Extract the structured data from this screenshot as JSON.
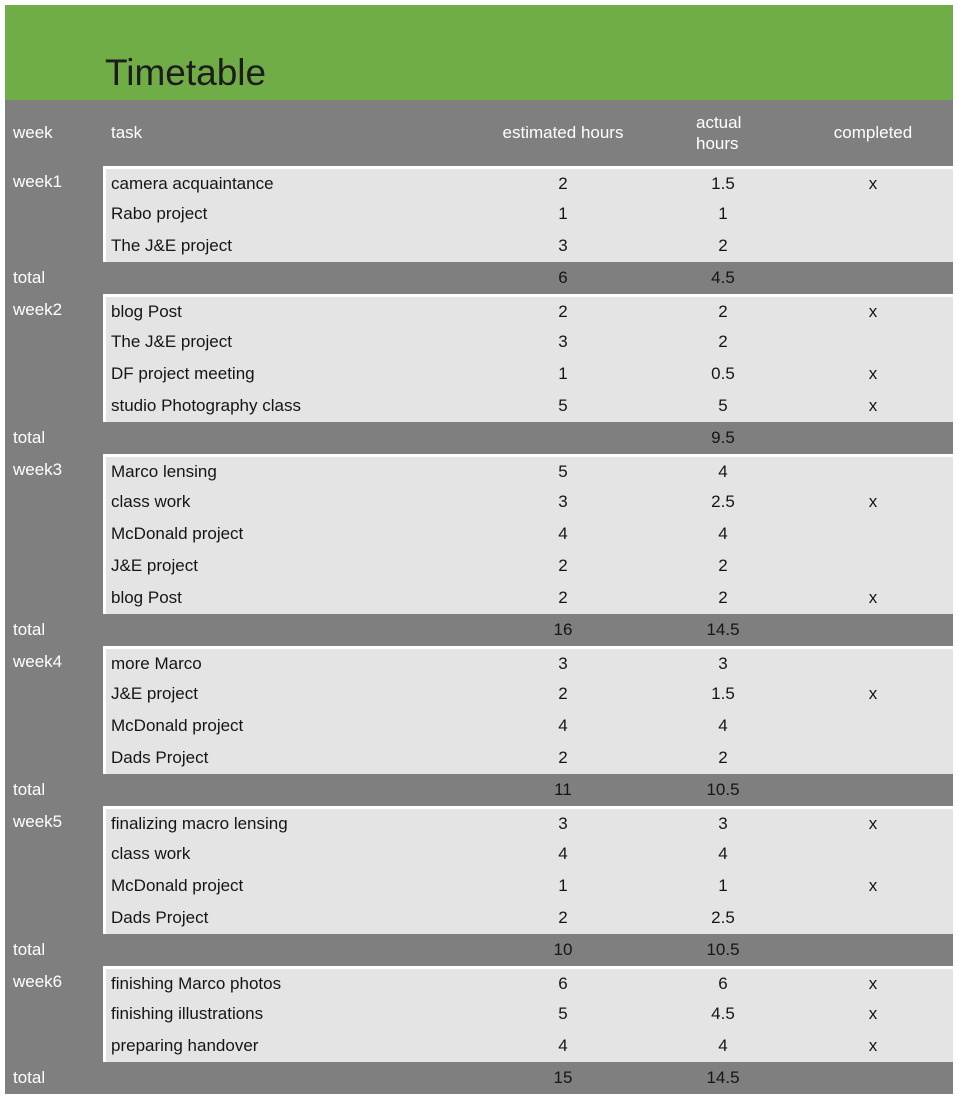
{
  "title": "Timetable",
  "columns": {
    "week": "week",
    "task": "task",
    "estimated": "estimated hours",
    "actual_line1": "actual",
    "actual_line2": "hours",
    "completed": "completed"
  },
  "weeks": [
    {
      "label": "week1",
      "tasks": [
        {
          "task": "camera acquaintance",
          "est": "2",
          "act": "1.5",
          "done": "x"
        },
        {
          "task": "Rabo project",
          "est": "1",
          "act": "1",
          "done": ""
        },
        {
          "task": "The J&E project",
          "est": "3",
          "act": "2",
          "done": ""
        }
      ],
      "total": {
        "label": "total",
        "est": "6",
        "act": "4.5"
      }
    },
    {
      "label": "week2",
      "tasks": [
        {
          "task": "blog Post",
          "est": "2",
          "act": "2",
          "done": "x"
        },
        {
          "task": "The J&E project",
          "est": "3",
          "act": "2",
          "done": ""
        },
        {
          "task": "DF project meeting",
          "est": "1",
          "act": "0.5",
          "done": "x"
        },
        {
          "task": "studio Photography class",
          "est": "5",
          "act": "5",
          "done": "x"
        }
      ],
      "total": {
        "label": "total",
        "est": "",
        "act": "9.5"
      }
    },
    {
      "label": "week3",
      "tasks": [
        {
          "task": "Marco lensing",
          "est": "5",
          "act": "4",
          "done": ""
        },
        {
          "task": "class work",
          "est": "3",
          "act": "2.5",
          "done": "x"
        },
        {
          "task": "McDonald project",
          "est": "4",
          "act": "4",
          "done": ""
        },
        {
          "task": "J&E project",
          "est": "2",
          "act": "2",
          "done": ""
        },
        {
          "task": "blog Post",
          "est": "2",
          "act": "2",
          "done": "x"
        }
      ],
      "total": {
        "label": "total",
        "est": "16",
        "act": "14.5"
      }
    },
    {
      "label": "week4",
      "tasks": [
        {
          "task": "more Marco",
          "est": "3",
          "act": "3",
          "done": ""
        },
        {
          "task": "J&E project",
          "est": "2",
          "act": "1.5",
          "done": "x"
        },
        {
          "task": "McDonald project",
          "est": "4",
          "act": "4",
          "done": ""
        },
        {
          "task": "Dads Project",
          "est": "2",
          "act": "2",
          "done": ""
        }
      ],
      "total": {
        "label": "total",
        "est": "11",
        "act": "10.5"
      }
    },
    {
      "label": "week5",
      "tasks": [
        {
          "task": "finalizing macro lensing",
          "est": "3",
          "act": "3",
          "done": "x"
        },
        {
          "task": "class work",
          "est": "4",
          "act": "4",
          "done": ""
        },
        {
          "task": "McDonald project",
          "est": "1",
          "act": "1",
          "done": "x"
        },
        {
          "task": "Dads Project",
          "est": "2",
          "act": "2.5",
          "done": ""
        }
      ],
      "total": {
        "label": "total",
        "est": "10",
        "act": "10.5"
      }
    },
    {
      "label": "week6",
      "tasks": [
        {
          "task": "finishing Marco photos",
          "est": "6",
          "act": "6",
          "done": "x"
        },
        {
          "task": "finishing illustrations",
          "est": "5",
          "act": "4.5",
          "done": "x"
        },
        {
          "task": "preparing handover",
          "est": "4",
          "act": "4",
          "done": "x"
        }
      ],
      "total": {
        "label": "total",
        "est": "15",
        "act": "14.5"
      }
    }
  ],
  "colors": {
    "banner_green": "#70AD47",
    "header_gray": "#7F7F7F",
    "row_light": "#E5E4E4",
    "header_text": "#FFFFFF",
    "body_text": "#151515",
    "title_text": "#1C1C1C"
  }
}
